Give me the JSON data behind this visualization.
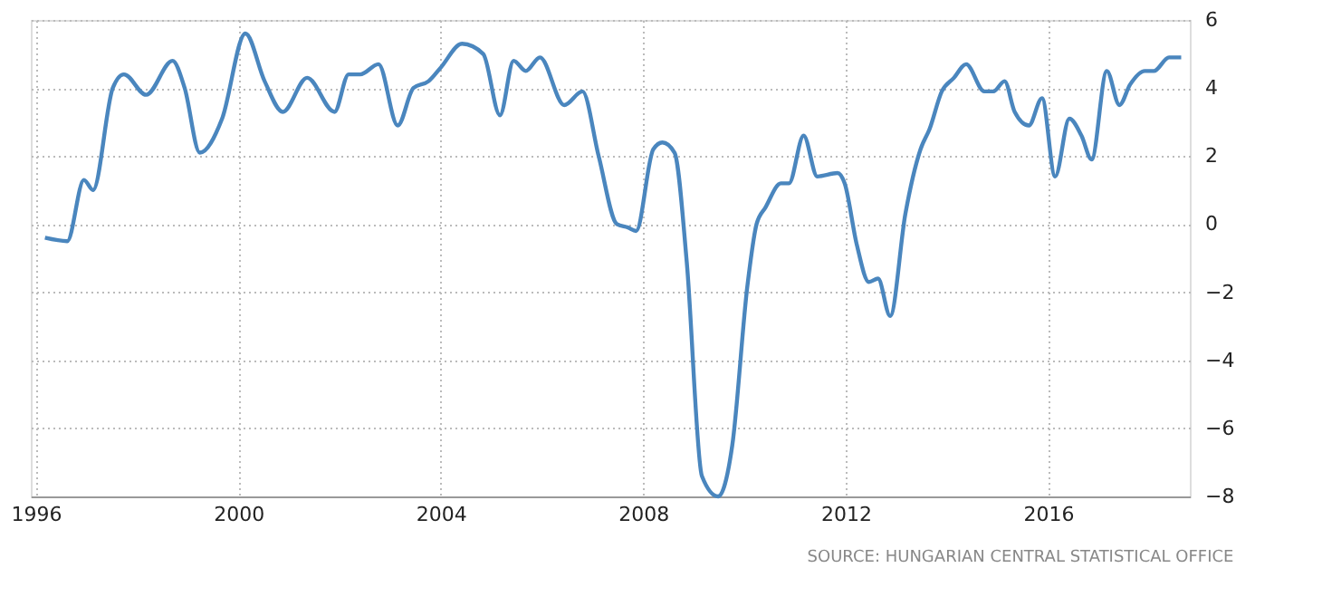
{
  "chart_data": {
    "type": "line",
    "annotations": [
      "SOURCE: HUNGARIAN CENTRAL STATISTICAL OFFICE"
    ],
    "xlim": [
      1995.9,
      2018.8
    ],
    "xticks": [
      1996,
      2000,
      2004,
      2008,
      2012,
      2016
    ],
    "ylim": [
      -8,
      6
    ],
    "yticks": [
      -8,
      -6,
      -4,
      -2,
      0,
      2,
      4,
      6
    ],
    "grid": true,
    "line_style": "solid",
    "marker": "none",
    "legend": false,
    "series": [
      {
        "color": "#4a86be",
        "x": [
          1996.18,
          1996.62,
          1996.95,
          1997.13,
          1997.52,
          1997.74,
          1998.18,
          1998.7,
          1998.94,
          1999.24,
          1999.68,
          2000.14,
          2000.52,
          2000.88,
          2001.36,
          2001.9,
          2002.18,
          2002.41,
          2002.77,
          2003.15,
          2003.46,
          2003.76,
          2004.0,
          2004.42,
          2004.84,
          2005.17,
          2005.44,
          2005.68,
          2005.96,
          2006.44,
          2006.8,
          2007.12,
          2007.48,
          2007.7,
          2007.86,
          2008.2,
          2008.38,
          2008.62,
          2008.86,
          2009.16,
          2009.48,
          2009.76,
          2010.06,
          2010.24,
          2010.42,
          2010.72,
          2010.88,
          2011.17,
          2011.44,
          2011.84,
          2011.98,
          2012.22,
          2012.46,
          2012.64,
          2012.88,
          2013.18,
          2013.48,
          2013.66,
          2013.9,
          2014.14,
          2014.38,
          2014.74,
          2014.92,
          2015.14,
          2015.34,
          2015.62,
          2015.88,
          2016.14,
          2016.42,
          2016.66,
          2016.86,
          2017.16,
          2017.41,
          2017.62,
          2017.91,
          2018.09,
          2018.39,
          2018.63
        ],
        "values": [
          -0.4,
          -0.5,
          1.3,
          1.0,
          4.0,
          4.4,
          3.8,
          4.8,
          4.0,
          2.1,
          3.1,
          5.6,
          4.2,
          3.3,
          4.3,
          3.3,
          4.4,
          4.4,
          4.7,
          2.9,
          4.0,
          4.2,
          4.6,
          5.3,
          5.0,
          3.2,
          4.8,
          4.5,
          4.9,
          3.5,
          3.9,
          2.0,
          0.0,
          -0.1,
          -0.2,
          2.2,
          2.4,
          2.1,
          -1.1,
          -7.4,
          -8.0,
          -6.5,
          -1.8,
          0.0,
          0.5,
          1.2,
          1.2,
          2.6,
          1.4,
          1.5,
          1.2,
          -0.6,
          -1.7,
          -1.6,
          -2.7,
          0.3,
          2.2,
          2.8,
          3.9,
          4.3,
          4.7,
          3.9,
          3.9,
          4.2,
          3.3,
          2.9,
          3.7,
          1.4,
          3.1,
          2.6,
          1.9,
          4.5,
          3.5,
          4.1,
          4.5,
          4.5,
          4.9,
          4.9
        ]
      }
    ]
  }
}
